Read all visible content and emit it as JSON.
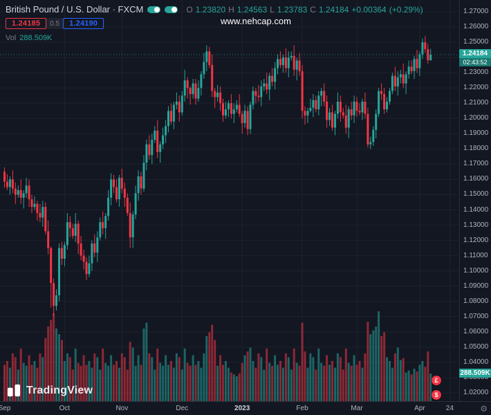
{
  "header": {
    "symbol_title": "British Pound / U.S. Dollar · FXCM",
    "ohlc": {
      "o_label": "O",
      "o": "1.23820",
      "h_label": "H",
      "h": "1.24563",
      "l_label": "L",
      "l": "1.23783",
      "c_label": "C",
      "c": "1.24184",
      "change": "+0.00364",
      "change_pct": "(+0.29%)"
    },
    "bid": "1.24185",
    "spread": "0.5",
    "ask": "1.24190",
    "vol_label": "Vol",
    "vol_value": "288.509K"
  },
  "watermark": "www.nehcap.com",
  "price_axis": {
    "last_price": "1.24184",
    "countdown": "02:43:52",
    "volume_badge": "288.509K"
  },
  "logo_text": "TradingView",
  "event_icons": [
    {
      "name": "economic-event-gbp",
      "glyph": "£"
    },
    {
      "name": "economic-event-usd",
      "glyph": "$"
    }
  ],
  "gear_glyph": "⚙",
  "colors": {
    "bg": "#131722",
    "grid": "#1e222d",
    "up": "#26a69a",
    "down": "#f23645",
    "vol_up": "rgba(38,166,154,0.55)",
    "vol_down": "rgba(242,54,69,0.55)",
    "text": "#d1d4dc",
    "muted": "#787b86",
    "axis_text": "#b2b5be",
    "blue": "#2962ff",
    "border": "#2a2e39"
  },
  "chart_data": {
    "type": "candlestick",
    "title": "British Pound / U.S. Dollar · FXCM, daily candles with volume",
    "ylim": [
      1.02,
      1.27
    ],
    "y_ticks": [
      "1.27000",
      "1.26000",
      "1.25000",
      "1.24000",
      "1.23000",
      "1.22000",
      "1.21000",
      "1.20000",
      "1.19000",
      "1.18000",
      "1.17000",
      "1.16000",
      "1.15000",
      "1.14000",
      "1.13000",
      "1.12000",
      "1.11000",
      "1.10000",
      "1.09000",
      "1.08000",
      "1.07000",
      "1.06000",
      "1.05000",
      "1.04000",
      "1.03000",
      "1.02000"
    ],
    "x_ticks": [
      {
        "label": "Sep",
        "i": 0
      },
      {
        "label": "Oct",
        "i": 22
      },
      {
        "label": "Nov",
        "i": 43
      },
      {
        "label": "Dec",
        "i": 65
      },
      {
        "label": "2023",
        "i": 87,
        "major": true
      },
      {
        "label": "Feb",
        "i": 109
      },
      {
        "label": "Mar",
        "i": 129
      },
      {
        "label": "Apr",
        "i": 152
      },
      {
        "label": "24",
        "i": 163
      }
    ],
    "volume_unit": "K",
    "last": {
      "o": "1.23820",
      "h": "1.24563",
      "l": "1.23783",
      "c": "1.24184",
      "change": "+0.00364",
      "change_pct": "+0.29%",
      "volume": "288.509K"
    },
    "candles": [
      [
        1.165,
        1.168,
        1.1545,
        1.1585,
        380
      ],
      [
        1.1585,
        1.1635,
        1.153,
        1.155,
        420
      ],
      [
        1.155,
        1.162,
        1.15,
        1.16,
        350
      ],
      [
        1.16,
        1.166,
        1.151,
        1.154,
        500
      ],
      [
        1.154,
        1.158,
        1.144,
        1.15,
        460
      ],
      [
        1.15,
        1.156,
        1.148,
        1.153,
        330
      ],
      [
        1.153,
        1.16,
        1.144,
        1.148,
        550
      ],
      [
        1.148,
        1.153,
        1.141,
        1.151,
        400
      ],
      [
        1.151,
        1.161,
        1.148,
        1.156,
        370
      ],
      [
        1.156,
        1.16,
        1.142,
        1.147,
        480
      ],
      [
        1.147,
        1.15,
        1.138,
        1.142,
        380
      ],
      [
        1.142,
        1.149,
        1.14,
        1.144,
        420
      ],
      [
        1.144,
        1.146,
        1.133,
        1.138,
        350
      ],
      [
        1.138,
        1.144,
        1.132,
        1.135,
        500
      ],
      [
        1.135,
        1.146,
        1.129,
        1.142,
        460
      ],
      [
        1.142,
        1.145,
        1.124,
        1.126,
        660
      ],
      [
        1.126,
        1.133,
        1.111,
        1.115,
        780
      ],
      [
        1.115,
        1.116,
        1.076,
        1.092,
        850
      ],
      [
        1.092,
        1.095,
        1.07,
        1.077,
        920
      ],
      [
        1.077,
        1.088,
        1.074,
        1.084,
        760
      ],
      [
        1.084,
        1.118,
        1.08,
        1.115,
        700
      ],
      [
        1.115,
        1.119,
        1.104,
        1.108,
        640
      ],
      [
        1.108,
        1.119,
        1.103,
        1.117,
        420
      ],
      [
        1.117,
        1.138,
        1.114,
        1.132,
        500
      ],
      [
        1.132,
        1.136,
        1.122,
        1.128,
        460
      ],
      [
        1.128,
        1.131,
        1.121,
        1.123,
        330
      ],
      [
        1.123,
        1.138,
        1.119,
        1.131,
        550
      ],
      [
        1.131,
        1.133,
        1.111,
        1.118,
        400
      ],
      [
        1.118,
        1.123,
        1.107,
        1.11,
        370
      ],
      [
        1.11,
        1.114,
        1.101,
        1.106,
        480
      ],
      [
        1.106,
        1.109,
        1.094,
        1.098,
        380
      ],
      [
        1.098,
        1.11,
        1.096,
        1.105,
        420
      ],
      [
        1.105,
        1.12,
        1.1,
        1.118,
        350
      ],
      [
        1.118,
        1.124,
        1.109,
        1.112,
        500
      ],
      [
        1.112,
        1.126,
        1.106,
        1.122,
        460
      ],
      [
        1.122,
        1.135,
        1.12,
        1.132,
        330
      ],
      [
        1.132,
        1.139,
        1.124,
        1.128,
        550
      ],
      [
        1.128,
        1.138,
        1.121,
        1.136,
        400
      ],
      [
        1.136,
        1.153,
        1.133,
        1.148,
        370
      ],
      [
        1.148,
        1.164,
        1.143,
        1.16,
        480
      ],
      [
        1.16,
        1.163,
        1.151,
        1.155,
        380
      ],
      [
        1.155,
        1.16,
        1.145,
        1.147,
        420
      ],
      [
        1.147,
        1.163,
        1.142,
        1.161,
        350
      ],
      [
        1.161,
        1.167,
        1.151,
        1.154,
        500
      ],
      [
        1.154,
        1.158,
        1.142,
        1.148,
        460
      ],
      [
        1.148,
        1.151,
        1.136,
        1.138,
        330
      ],
      [
        1.138,
        1.145,
        1.115,
        1.122,
        620
      ],
      [
        1.122,
        1.139,
        1.115,
        1.137,
        560
      ],
      [
        1.137,
        1.156,
        1.134,
        1.151,
        370
      ],
      [
        1.151,
        1.166,
        1.146,
        1.162,
        480
      ],
      [
        1.162,
        1.165,
        1.15,
        1.154,
        380
      ],
      [
        1.154,
        1.176,
        1.152,
        1.171,
        760
      ],
      [
        1.171,
        1.186,
        1.166,
        1.183,
        820
      ],
      [
        1.183,
        1.189,
        1.173,
        1.176,
        500
      ],
      [
        1.176,
        1.19,
        1.17,
        1.186,
        460
      ],
      [
        1.186,
        1.195,
        1.184,
        1.192,
        330
      ],
      [
        1.192,
        1.199,
        1.174,
        1.178,
        550
      ],
      [
        1.178,
        1.185,
        1.171,
        1.183,
        400
      ],
      [
        1.183,
        1.194,
        1.18,
        1.189,
        370
      ],
      [
        1.189,
        1.199,
        1.184,
        1.195,
        480
      ],
      [
        1.195,
        1.208,
        1.191,
        1.205,
        380
      ],
      [
        1.205,
        1.21,
        1.196,
        1.198,
        420
      ],
      [
        1.198,
        1.211,
        1.193,
        1.209,
        350
      ],
      [
        1.209,
        1.217,
        1.206,
        1.211,
        500
      ],
      [
        1.211,
        1.215,
        1.198,
        1.204,
        460
      ],
      [
        1.204,
        1.218,
        1.202,
        1.215,
        330
      ],
      [
        1.215,
        1.232,
        1.211,
        1.225,
        550
      ],
      [
        1.225,
        1.227,
        1.213,
        1.22,
        400
      ],
      [
        1.22,
        1.221,
        1.209,
        1.216,
        370
      ],
      [
        1.216,
        1.226,
        1.213,
        1.223,
        480
      ],
      [
        1.223,
        1.226,
        1.209,
        1.213,
        380
      ],
      [
        1.213,
        1.225,
        1.211,
        1.22,
        420
      ],
      [
        1.22,
        1.231,
        1.215,
        1.229,
        350
      ],
      [
        1.229,
        1.243,
        1.226,
        1.237,
        500
      ],
      [
        1.237,
        1.248,
        1.231,
        1.244,
        680
      ],
      [
        1.244,
        1.247,
        1.233,
        1.235,
        720
      ],
      [
        1.235,
        1.242,
        1.214,
        1.218,
        800
      ],
      [
        1.218,
        1.22,
        1.207,
        1.214,
        640
      ],
      [
        1.214,
        1.222,
        1.211,
        1.217,
        370
      ],
      [
        1.217,
        1.221,
        1.205,
        1.21,
        480
      ],
      [
        1.21,
        1.213,
        1.198,
        1.202,
        380
      ],
      [
        1.202,
        1.211,
        1.2,
        1.206,
        420
      ],
      [
        1.206,
        1.212,
        1.201,
        1.21,
        350
      ],
      [
        1.21,
        1.216,
        1.2,
        1.203,
        300
      ],
      [
        1.203,
        1.21,
        1.197,
        1.206,
        280
      ],
      [
        1.206,
        1.212,
        1.204,
        1.209,
        260
      ],
      [
        1.209,
        1.216,
        1.201,
        1.203,
        290
      ],
      [
        1.203,
        1.205,
        1.19,
        1.197,
        400
      ],
      [
        1.197,
        1.209,
        1.194,
        1.205,
        480
      ],
      [
        1.205,
        1.208,
        1.189,
        1.193,
        520
      ],
      [
        1.193,
        1.211,
        1.19,
        1.209,
        560
      ],
      [
        1.209,
        1.221,
        1.206,
        1.218,
        420
      ],
      [
        1.218,
        1.22,
        1.21,
        1.215,
        350
      ],
      [
        1.215,
        1.222,
        1.211,
        1.214,
        500
      ],
      [
        1.214,
        1.225,
        1.208,
        1.221,
        460
      ],
      [
        1.221,
        1.226,
        1.218,
        1.223,
        330
      ],
      [
        1.223,
        1.23,
        1.216,
        1.219,
        550
      ],
      [
        1.219,
        1.23,
        1.212,
        1.228,
        400
      ],
      [
        1.228,
        1.233,
        1.221,
        1.224,
        370
      ],
      [
        1.224,
        1.237,
        1.219,
        1.233,
        480
      ],
      [
        1.233,
        1.242,
        1.229,
        1.239,
        380
      ],
      [
        1.239,
        1.244,
        1.233,
        1.235,
        420
      ],
      [
        1.235,
        1.242,
        1.23,
        1.24,
        350
      ],
      [
        1.24,
        1.246,
        1.23,
        1.233,
        500
      ],
      [
        1.233,
        1.244,
        1.227,
        1.24,
        460
      ],
      [
        1.24,
        1.244,
        1.238,
        1.241,
        330
      ],
      [
        1.241,
        1.248,
        1.228,
        1.232,
        550
      ],
      [
        1.232,
        1.24,
        1.225,
        1.238,
        400
      ],
      [
        1.238,
        1.243,
        1.228,
        1.231,
        370
      ],
      [
        1.231,
        1.235,
        1.2,
        1.205,
        820
      ],
      [
        1.205,
        1.208,
        1.196,
        1.202,
        520
      ],
      [
        1.202,
        1.207,
        1.197,
        1.205,
        350
      ],
      [
        1.205,
        1.213,
        1.204,
        1.207,
        500
      ],
      [
        1.207,
        1.216,
        1.201,
        1.212,
        460
      ],
      [
        1.212,
        1.215,
        1.204,
        1.206,
        330
      ],
      [
        1.206,
        1.218,
        1.202,
        1.215,
        550
      ],
      [
        1.215,
        1.22,
        1.208,
        1.218,
        400
      ],
      [
        1.218,
        1.223,
        1.208,
        1.211,
        370
      ],
      [
        1.211,
        1.215,
        1.194,
        1.199,
        480
      ],
      [
        1.199,
        1.207,
        1.195,
        1.204,
        380
      ],
      [
        1.204,
        1.209,
        1.192,
        1.194,
        420
      ],
      [
        1.194,
        1.205,
        1.189,
        1.203,
        350
      ],
      [
        1.203,
        1.217,
        1.2,
        1.211,
        500
      ],
      [
        1.211,
        1.215,
        1.198,
        1.204,
        460
      ],
      [
        1.204,
        1.207,
        1.2,
        1.202,
        330
      ],
      [
        1.202,
        1.209,
        1.19,
        1.194,
        550
      ],
      [
        1.194,
        1.208,
        1.187,
        1.206,
        400
      ],
      [
        1.206,
        1.211,
        1.199,
        1.202,
        370
      ],
      [
        1.202,
        1.215,
        1.197,
        1.211,
        480
      ],
      [
        1.211,
        1.214,
        1.201,
        1.205,
        380
      ],
      [
        1.205,
        1.21,
        1.202,
        1.204,
        420
      ],
      [
        1.204,
        1.213,
        1.199,
        1.211,
        350
      ],
      [
        1.211,
        1.217,
        1.2,
        1.203,
        500
      ],
      [
        1.203,
        1.207,
        1.181,
        1.183,
        830
      ],
      [
        1.183,
        1.188,
        1.18,
        1.1845,
        700
      ],
      [
        1.1845,
        1.195,
        1.182,
        1.1925,
        740
      ],
      [
        1.1925,
        1.206,
        1.187,
        1.203,
        780
      ],
      [
        1.203,
        1.22,
        1.201,
        1.218,
        940
      ],
      [
        1.218,
        1.223,
        1.212,
        1.216,
        680
      ],
      [
        1.216,
        1.22,
        1.203,
        1.206,
        720
      ],
      [
        1.206,
        1.214,
        1.204,
        1.211,
        460
      ],
      [
        1.211,
        1.22,
        1.209,
        1.218,
        420
      ],
      [
        1.218,
        1.23,
        1.216,
        1.228,
        350
      ],
      [
        1.228,
        1.234,
        1.218,
        1.221,
        500
      ],
      [
        1.221,
        1.231,
        1.215,
        1.227,
        560
      ],
      [
        1.227,
        1.232,
        1.223,
        1.229,
        430
      ],
      [
        1.229,
        1.236,
        1.22,
        1.223,
        450
      ],
      [
        1.223,
        1.231,
        1.216,
        1.229,
        300
      ],
      [
        1.229,
        1.238,
        1.226,
        1.234,
        320
      ],
      [
        1.234,
        1.238,
        1.229,
        1.231,
        280
      ],
      [
        1.231,
        1.241,
        1.226,
        1.239,
        340
      ],
      [
        1.239,
        1.245,
        1.23,
        1.233,
        310
      ],
      [
        1.233,
        1.244,
        1.228,
        1.242,
        380
      ],
      [
        1.242,
        1.2525,
        1.239,
        1.25,
        420
      ],
      [
        1.25,
        1.254,
        1.243,
        1.2455,
        360
      ],
      [
        1.2455,
        1.249,
        1.236,
        1.2382,
        520
      ],
      [
        1.2382,
        1.24563,
        1.23783,
        1.24184,
        288.509
      ]
    ]
  }
}
